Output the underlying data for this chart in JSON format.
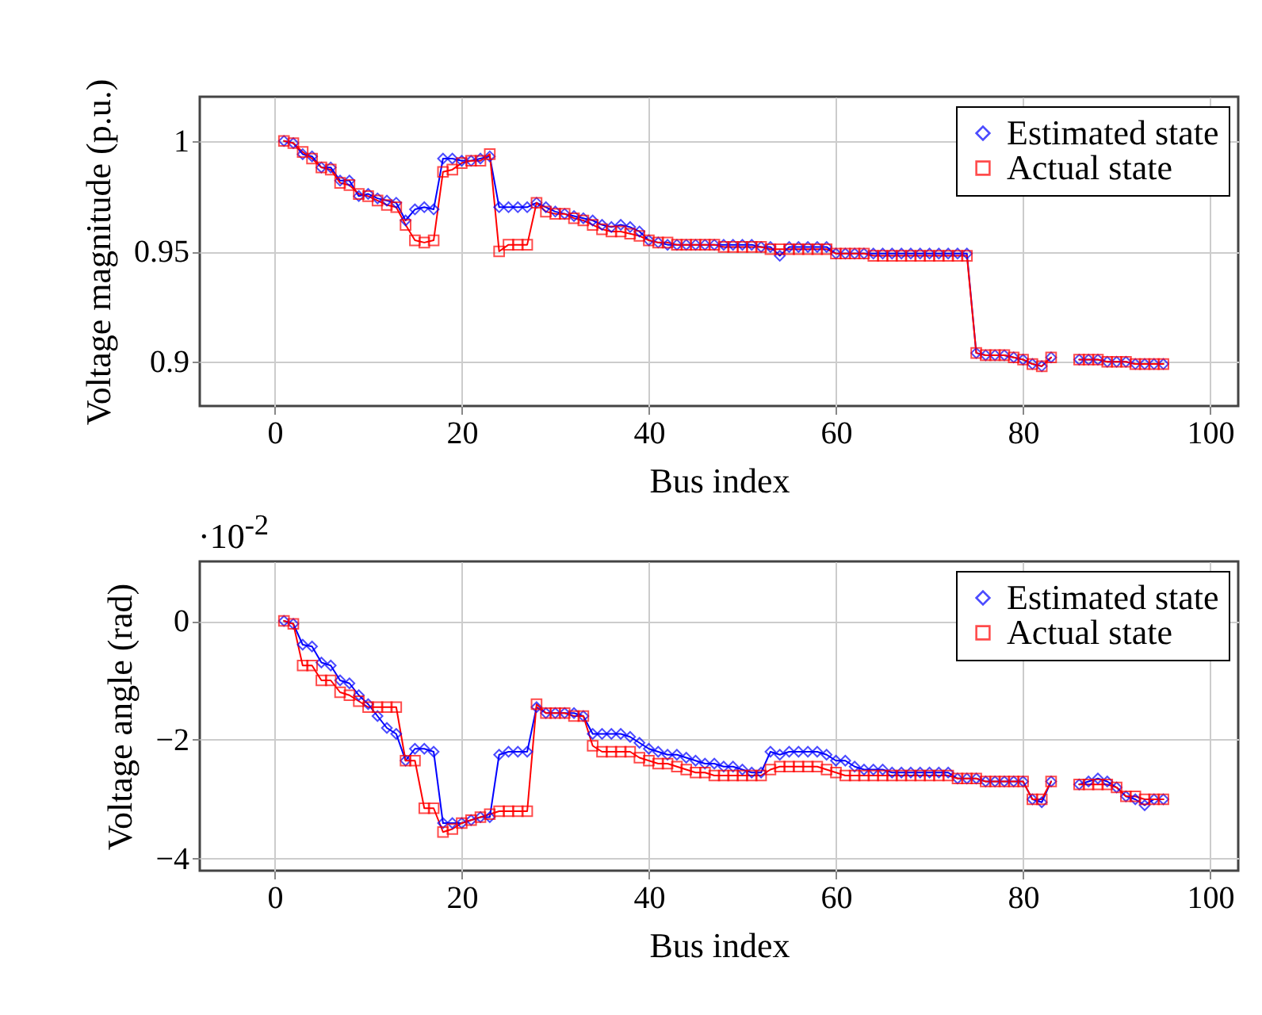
{
  "chart_data": [
    {
      "type": "line",
      "xlabel": "Bus index",
      "ylabel": "Voltage magnitude (p.u.)",
      "xlim": [
        -8,
        103
      ],
      "ylim": [
        0.88,
        1.02
      ],
      "xticks": [
        0,
        20,
        40,
        60,
        80,
        100
      ],
      "yticks": [
        0.9,
        0.95,
        1
      ],
      "grid": true,
      "legend": "top right",
      "line_style": "solid",
      "x": [
        1,
        2,
        3,
        4,
        5,
        6,
        7,
        8,
        9,
        10,
        11,
        12,
        13,
        14,
        15,
        16,
        17,
        18,
        19,
        20,
        21,
        22,
        23,
        24,
        25,
        26,
        27,
        28,
        29,
        30,
        31,
        32,
        33,
        34,
        35,
        36,
        37,
        38,
        39,
        40,
        41,
        42,
        43,
        44,
        45,
        46,
        47,
        48,
        49,
        50,
        51,
        52,
        53,
        54,
        55,
        56,
        57,
        58,
        59,
        60,
        61,
        62,
        63,
        64,
        65,
        66,
        67,
        68,
        69,
        70,
        71,
        72,
        73,
        74,
        75,
        76,
        77,
        78,
        79,
        80,
        81,
        82,
        83,
        84,
        85,
        86,
        87,
        88,
        89,
        90,
        91,
        92,
        93,
        94,
        95
      ],
      "series": [
        {
          "name": "Estimated state",
          "color": "#0000ff",
          "marker": "diamond",
          "values": [
            1.0,
            0.999,
            0.994,
            0.993,
            0.988,
            0.988,
            0.982,
            0.982,
            0.975,
            0.976,
            0.974,
            0.973,
            0.972,
            0.964,
            0.969,
            0.97,
            0.969,
            0.992,
            0.992,
            0.991,
            0.991,
            0.992,
            0.993,
            0.97,
            0.97,
            0.97,
            0.97,
            0.972,
            0.97,
            0.968,
            0.967,
            0.966,
            0.965,
            0.964,
            0.962,
            0.961,
            0.962,
            0.961,
            0.959,
            0.955,
            0.954,
            0.953,
            0.953,
            0.953,
            0.953,
            0.953,
            0.953,
            0.953,
            0.953,
            0.953,
            0.953,
            0.952,
            0.952,
            0.948,
            0.952,
            0.952,
            0.952,
            0.952,
            0.952,
            0.949,
            0.949,
            0.949,
            0.949,
            0.949,
            0.949,
            0.949,
            0.949,
            0.949,
            0.949,
            0.949,
            0.949,
            0.949,
            0.949,
            0.949,
            0.904,
            0.903,
            0.903,
            0.903,
            0.902,
            0.901,
            0.899,
            0.898,
            0.902,
            null,
            null,
            0.901,
            0.901,
            0.901,
            0.9,
            0.9,
            0.9,
            0.899,
            0.899,
            0.899,
            0.899
          ]
        },
        {
          "name": "Actual state",
          "color": "#ff0000",
          "marker": "square",
          "values": [
            1.0,
            0.999,
            0.995,
            0.992,
            0.988,
            0.987,
            0.981,
            0.98,
            0.976,
            0.975,
            0.973,
            0.971,
            0.97,
            0.962,
            0.955,
            0.954,
            0.955,
            0.986,
            0.987,
            0.99,
            0.991,
            0.991,
            0.994,
            0.95,
            0.953,
            0.953,
            0.953,
            0.972,
            0.968,
            0.967,
            0.967,
            0.965,
            0.964,
            0.962,
            0.96,
            0.959,
            0.959,
            0.958,
            0.957,
            0.955,
            0.954,
            0.954,
            0.953,
            0.953,
            0.953,
            0.953,
            0.953,
            0.952,
            0.952,
            0.952,
            0.952,
            0.952,
            0.951,
            0.951,
            0.951,
            0.951,
            0.951,
            0.951,
            0.951,
            0.949,
            0.949,
            0.949,
            0.949,
            0.948,
            0.948,
            0.948,
            0.948,
            0.948,
            0.948,
            0.948,
            0.948,
            0.948,
            0.948,
            0.948,
            0.904,
            0.903,
            0.903,
            0.903,
            0.902,
            0.901,
            0.899,
            0.898,
            0.902,
            null,
            null,
            0.901,
            0.901,
            0.901,
            0.9,
            0.9,
            0.9,
            0.899,
            0.899,
            0.899,
            0.899
          ]
        }
      ]
    },
    {
      "type": "line",
      "xlabel": "Bus index",
      "ylabel": "Voltage angle (rad)",
      "annotations": [
        "·10$^{-2}$"
      ],
      "xlim": [
        -8,
        103
      ],
      "ylim": [
        -4.2,
        1
      ],
      "xticks": [
        0,
        20,
        40,
        60,
        80,
        100
      ],
      "yticks": [
        {
          "value": -4,
          "label": "−4"
        },
        {
          "value": -2,
          "label": "−2"
        },
        0
      ],
      "grid": true,
      "legend": "top right",
      "line_style": "solid",
      "x": [
        1,
        2,
        3,
        4,
        5,
        6,
        7,
        8,
        9,
        10,
        11,
        12,
        13,
        14,
        15,
        16,
        17,
        18,
        19,
        20,
        21,
        22,
        23,
        24,
        25,
        26,
        27,
        28,
        29,
        30,
        31,
        32,
        33,
        34,
        35,
        36,
        37,
        38,
        39,
        40,
        41,
        42,
        43,
        44,
        45,
        46,
        47,
        48,
        49,
        50,
        51,
        52,
        53,
        54,
        55,
        56,
        57,
        58,
        59,
        60,
        61,
        62,
        63,
        64,
        65,
        66,
        67,
        68,
        69,
        70,
        71,
        72,
        73,
        74,
        75,
        76,
        77,
        78,
        79,
        80,
        81,
        82,
        83,
        84,
        85,
        86,
        87,
        88,
        89,
        90,
        91,
        92,
        93,
        94,
        95
      ],
      "series": [
        {
          "name": "Estimated state",
          "color": "#0000ff",
          "marker": "diamond",
          "values": [
            0,
            -0.05,
            -0.4,
            -0.43,
            -0.7,
            -0.75,
            -1.0,
            -1.05,
            -1.25,
            -1.4,
            -1.6,
            -1.8,
            -1.9,
            -2.35,
            -2.15,
            -2.15,
            -2.2,
            -3.4,
            -3.4,
            -3.4,
            -3.35,
            -3.3,
            -3.3,
            -2.25,
            -2.2,
            -2.2,
            -2.2,
            -1.45,
            -1.55,
            -1.55,
            -1.55,
            -1.55,
            -1.6,
            -1.9,
            -1.9,
            -1.9,
            -1.9,
            -1.95,
            -2.05,
            -2.15,
            -2.2,
            -2.25,
            -2.25,
            -2.3,
            -2.35,
            -2.4,
            -2.4,
            -2.45,
            -2.45,
            -2.5,
            -2.55,
            -2.55,
            -2.2,
            -2.25,
            -2.2,
            -2.2,
            -2.2,
            -2.2,
            -2.25,
            -2.35,
            -2.35,
            -2.45,
            -2.5,
            -2.5,
            -2.5,
            -2.55,
            -2.55,
            -2.55,
            -2.55,
            -2.55,
            -2.55,
            -2.55,
            -2.65,
            -2.65,
            -2.65,
            -2.7,
            -2.7,
            -2.7,
            -2.7,
            -2.7,
            -3.0,
            -3.05,
            -2.7,
            null,
            null,
            -2.75,
            -2.7,
            -2.65,
            -2.7,
            -2.8,
            -2.95,
            -3.0,
            -3.1,
            -3.0,
            -3.0
          ]
        },
        {
          "name": "Actual state",
          "color": "#ff0000",
          "marker": "square",
          "values": [
            0,
            -0.05,
            -0.75,
            -0.75,
            -1.0,
            -1.0,
            -1.2,
            -1.25,
            -1.35,
            -1.45,
            -1.45,
            -1.45,
            -1.45,
            -2.35,
            -2.35,
            -3.15,
            -3.15,
            -3.55,
            -3.5,
            -3.4,
            -3.35,
            -3.3,
            -3.25,
            -3.2,
            -3.2,
            -3.2,
            -3.2,
            -1.4,
            -1.55,
            -1.55,
            -1.55,
            -1.6,
            -1.6,
            -2.1,
            -2.2,
            -2.2,
            -2.2,
            -2.2,
            -2.3,
            -2.35,
            -2.4,
            -2.4,
            -2.45,
            -2.5,
            -2.55,
            -2.55,
            -2.6,
            -2.6,
            -2.6,
            -2.6,
            -2.6,
            -2.6,
            -2.5,
            -2.45,
            -2.45,
            -2.45,
            -2.45,
            -2.45,
            -2.5,
            -2.55,
            -2.6,
            -2.6,
            -2.6,
            -2.6,
            -2.6,
            -2.6,
            -2.6,
            -2.6,
            -2.6,
            -2.6,
            -2.6,
            -2.6,
            -2.65,
            -2.65,
            -2.65,
            -2.7,
            -2.7,
            -2.7,
            -2.7,
            -2.7,
            -3.0,
            -3.0,
            -2.7,
            null,
            null,
            -2.75,
            -2.75,
            -2.75,
            -2.75,
            -2.8,
            -2.95,
            -2.95,
            -3.0,
            -3.0,
            -3.0
          ]
        }
      ]
    }
  ]
}
